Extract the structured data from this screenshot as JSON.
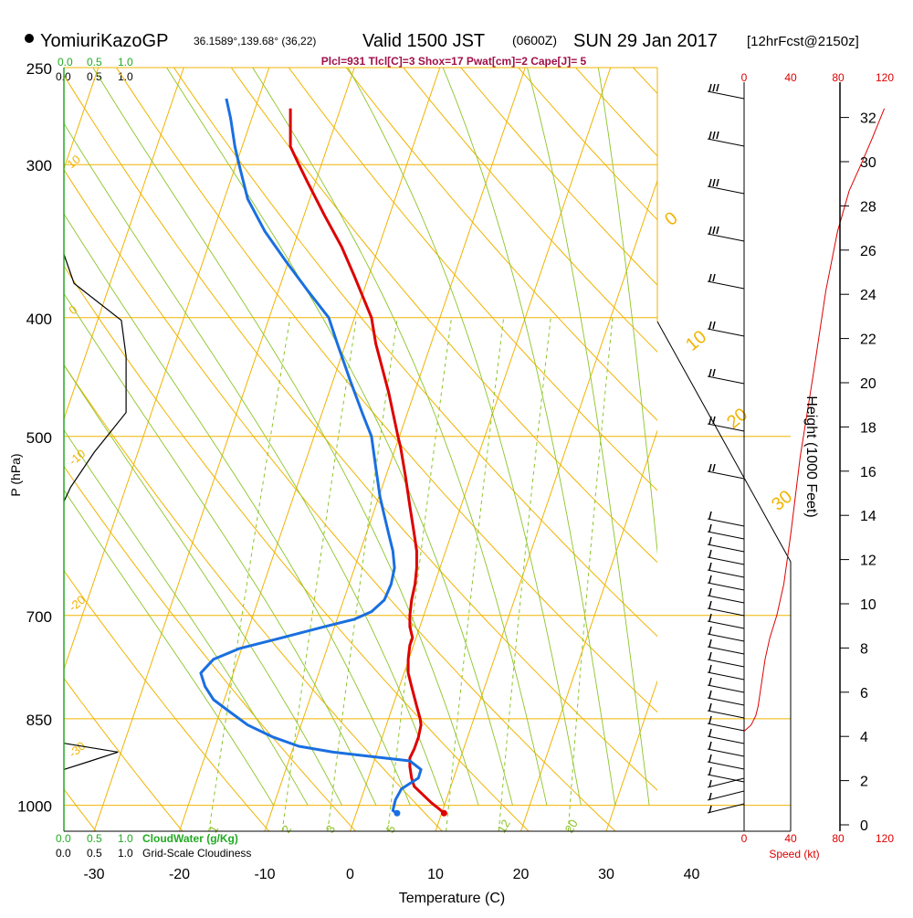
{
  "header": {
    "station": "YomiuriKazoGP",
    "coords": "36.1589°,139.68° (36,22)",
    "valid": "Valid 1500 JST",
    "zulu": "(0600Z)",
    "date": "SUN 29 Jan 2017",
    "forecast": "[12hrFcst@2150z]",
    "indices": "Plcl=931 Tlcl[C]=3 Shox=17 Pwat[cm]=2 Cape[J]= 5"
  },
  "colors": {
    "temperature": "#dd0000",
    "dewpoint": "#1a6fe0",
    "isotherm_isobar": "#f0b400",
    "dry_adiabat": "#f0b400",
    "moist_adiabat": "#8cc428",
    "mixing_ratio": "#8cc428",
    "cloud_water": "#22aa22",
    "wind_speed": "#dd0000"
  },
  "labels": {
    "y_axis": "P (hPa)",
    "x_axis": "Temperature (C)",
    "height_axis": "Height (1000 Feet)",
    "cloud_water": "CloudWater (g/Kg)",
    "cloudiness": "Grid-Scale Cloudiness",
    "speed": "Speed (kt)"
  },
  "cloud_scale": {
    "green": [
      "0.0",
      "0.5",
      "1.0"
    ],
    "black": [
      "0.0",
      "0.5",
      "1.0"
    ]
  },
  "speed_scale": [
    "0",
    "40",
    "80",
    "120"
  ],
  "chart_data": {
    "type": "line",
    "title": "",
    "pressure_ticks": [
      250,
      300,
      400,
      500,
      700,
      850,
      1000
    ],
    "temperature_ticks": [
      -30,
      -20,
      -10,
      0,
      10,
      20,
      30,
      40
    ],
    "xlim": [
      -35,
      45
    ],
    "ylim": [
      1050,
      250
    ],
    "height_ticks_kft": [
      0,
      2,
      4,
      6,
      8,
      10,
      12,
      14,
      16,
      18,
      20,
      22,
      24,
      26,
      28,
      30,
      32
    ],
    "dry_adiabat_labels": [
      "10",
      "0",
      "-10",
      "-20",
      "-30",
      "0",
      "10",
      "20",
      "30"
    ],
    "mixing_ratio_labels": [
      "1",
      "2",
      "3",
      "5",
      "12",
      "20"
    ],
    "series": [
      {
        "key": "temperature",
        "points": [
          [
            11.0,
            1015
          ],
          [
            10.5,
            1008
          ],
          [
            9.5,
            995
          ],
          [
            8.5,
            980
          ],
          [
            7.5,
            965
          ],
          [
            7.2,
            950
          ],
          [
            7.0,
            930
          ],
          [
            7.0,
            915
          ],
          [
            7.5,
            900
          ],
          [
            8.0,
            880
          ],
          [
            8.3,
            860
          ],
          [
            8.2,
            850
          ],
          [
            7.8,
            830
          ],
          [
            7.2,
            800
          ],
          [
            6.8,
            780
          ],
          [
            6.8,
            760
          ],
          [
            7.0,
            740
          ],
          [
            7.3,
            730
          ],
          [
            7.0,
            715
          ],
          [
            7.0,
            700
          ],
          [
            7.2,
            680
          ],
          [
            7.6,
            660
          ],
          [
            7.8,
            640
          ],
          [
            7.8,
            620
          ],
          [
            7.5,
            600
          ],
          [
            7.0,
            570
          ],
          [
            6.5,
            540
          ],
          [
            5.9,
            510
          ],
          [
            5.6,
            500
          ],
          [
            4.5,
            460
          ],
          [
            3.0,
            420
          ],
          [
            2.5,
            400
          ],
          [
            0.5,
            370
          ],
          [
            -1.0,
            350
          ],
          [
            -3.0,
            330
          ],
          [
            -5.0,
            310
          ],
          [
            -6.0,
            300
          ],
          [
            -7.0,
            290
          ],
          [
            -7.0,
            280
          ],
          [
            -7.0,
            270
          ]
        ]
      },
      {
        "key": "dewpoint",
        "points": [
          [
            5.5,
            1015
          ],
          [
            5.0,
            1010
          ],
          [
            5.3,
            990
          ],
          [
            6.0,
            970
          ],
          [
            7.0,
            960
          ],
          [
            8.0,
            950
          ],
          [
            8.3,
            935
          ],
          [
            7.0,
            920
          ],
          [
            1.0,
            910
          ],
          [
            -2.0,
            905
          ],
          [
            -6.0,
            895
          ],
          [
            -9.0,
            880
          ],
          [
            -12.0,
            860
          ],
          [
            -14.0,
            840
          ],
          [
            -16.0,
            820
          ],
          [
            -17.0,
            800
          ],
          [
            -17.5,
            780
          ],
          [
            -16.0,
            760
          ],
          [
            -13.0,
            745
          ],
          [
            -8.0,
            730
          ],
          [
            -3.0,
            715
          ],
          [
            0.5,
            705
          ],
          [
            2.5,
            695
          ],
          [
            4.0,
            680
          ],
          [
            4.8,
            660
          ],
          [
            5.2,
            640
          ],
          [
            5.0,
            620
          ],
          [
            4.5,
            600
          ],
          [
            4.0,
            580
          ],
          [
            3.5,
            560
          ],
          [
            3.0,
            530
          ],
          [
            2.5,
            500
          ],
          [
            1.5,
            480
          ],
          [
            0.0,
            450
          ],
          [
            -1.5,
            420
          ],
          [
            -2.5,
            400
          ],
          [
            -5.0,
            380
          ],
          [
            -7.5,
            360
          ],
          [
            -10.0,
            340
          ],
          [
            -12.0,
            320
          ],
          [
            -13.0,
            300
          ],
          [
            -13.5,
            290
          ],
          [
            -14.0,
            275
          ],
          [
            -14.5,
            265
          ]
        ]
      },
      {
        "key": "cloudiness",
        "points": [
          [
            0.0,
            355
          ],
          [
            0.15,
            375
          ],
          [
            0.85,
            402
          ],
          [
            0.92,
            430
          ],
          [
            0.92,
            478
          ],
          [
            0.45,
            515
          ],
          [
            0.1,
            550
          ],
          [
            0.0,
            565
          ]
        ]
      },
      {
        "key": "cloud_water",
        "points": [
          [
            0.0,
            890
          ],
          [
            0.08,
            905
          ],
          [
            0.04,
            920
          ],
          [
            0.0,
            935
          ]
        ]
      },
      {
        "key": "wind_speed",
        "points": [
          [
            0,
            870
          ],
          [
            6,
            860
          ],
          [
            10,
            845
          ],
          [
            12,
            830
          ],
          [
            18,
            760
          ],
          [
            22,
            730
          ],
          [
            28,
            700
          ],
          [
            34,
            660
          ],
          [
            40,
            600
          ],
          [
            48,
            520
          ],
          [
            60,
            440
          ],
          [
            70,
            380
          ],
          [
            80,
            340
          ],
          [
            90,
            315
          ],
          [
            100,
            300
          ],
          [
            110,
            285
          ],
          [
            120,
            270
          ]
        ]
      }
    ]
  }
}
